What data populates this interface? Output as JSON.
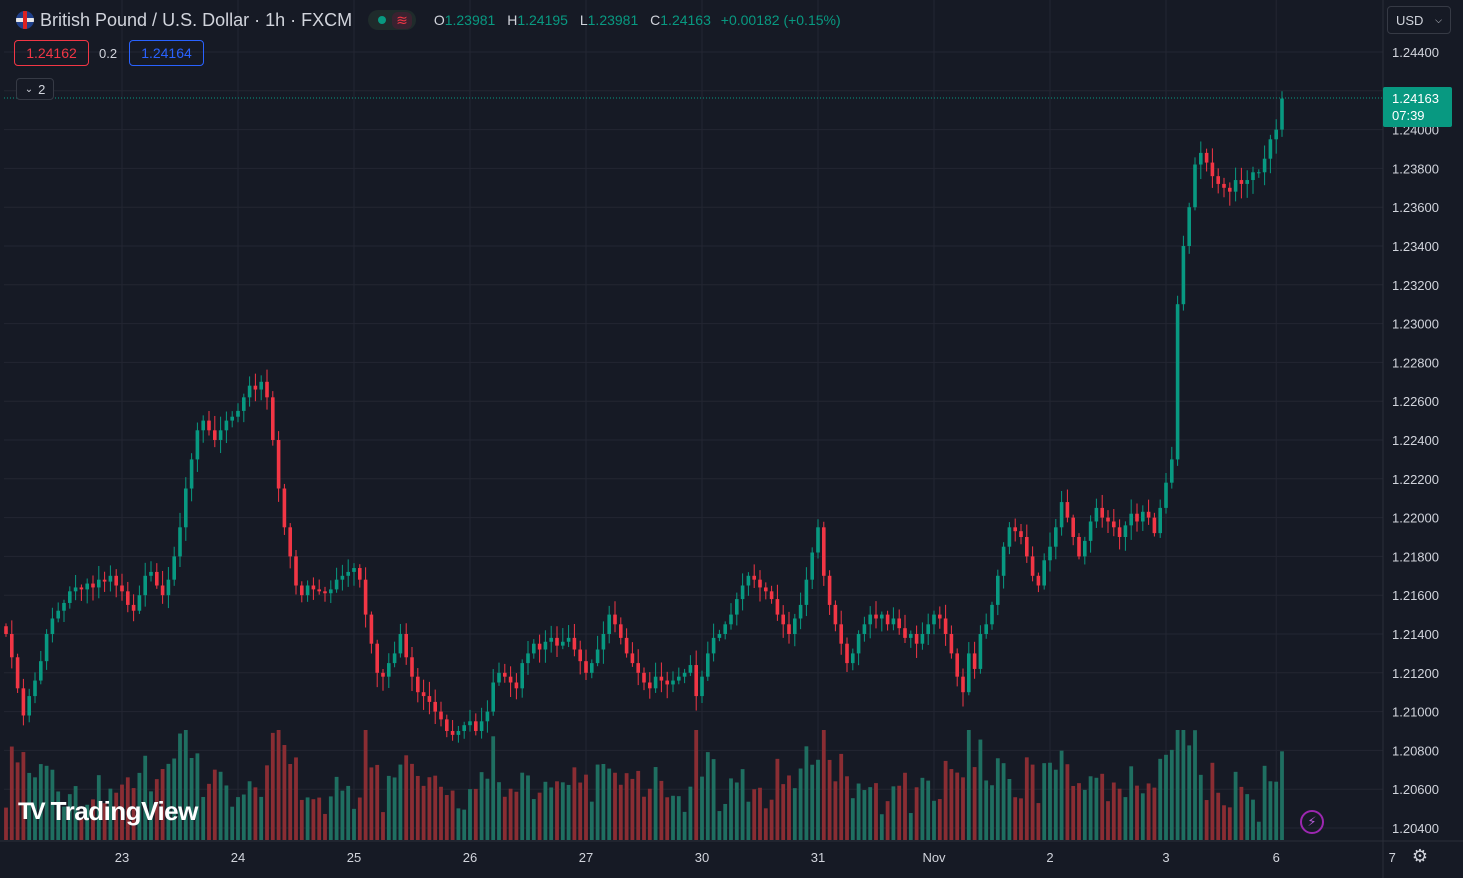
{
  "header": {
    "title": "British Pound / U.S. Dollar · 1h · FXCM",
    "ohlc": {
      "o_label": "O",
      "o": "1.23981",
      "h_label": "H",
      "h": "1.24195",
      "l_label": "L",
      "l": "1.23981",
      "c_label": "C",
      "c": "1.24163",
      "change": "+0.00182 (+0.15%)"
    },
    "sell": "1.24162",
    "spread": "0.2",
    "buy": "1.24164",
    "collapse_count": "2",
    "currency": "USD"
  },
  "last_price": {
    "price": "1.24163",
    "countdown": "07:39"
  },
  "logo": "TradingView",
  "colors": {
    "up": "#089981",
    "down": "#f23645",
    "bg": "#161a25",
    "grid": "#232632",
    "text": "#d1d4dc",
    "vol_up": "#1f6f61",
    "vol_down": "#8a2d33"
  },
  "chart_data": {
    "type": "candlestick",
    "symbol": "GBPUSD",
    "interval": "1h",
    "ylim": [
      1.203,
      1.2454
    ],
    "y_ticks": [
      "1.24400",
      "1.24200",
      "1.24000",
      "1.23800",
      "1.23600",
      "1.23400",
      "1.23200",
      "1.23000",
      "1.22800",
      "1.22600",
      "1.22400",
      "1.22200",
      "1.22000",
      "1.21800",
      "1.21600",
      "1.21400",
      "1.21200",
      "1.21000",
      "1.20800",
      "1.20600",
      "1.20400"
    ],
    "x_ticks": [
      {
        "label": "23",
        "bar": 20
      },
      {
        "label": "24",
        "bar": 40
      },
      {
        "label": "25",
        "bar": 60
      },
      {
        "label": "26",
        "bar": 80
      },
      {
        "label": "27",
        "bar": 100
      },
      {
        "label": "30",
        "bar": 120
      },
      {
        "label": "31",
        "bar": 140
      },
      {
        "label": "Nov",
        "bar": 160
      },
      {
        "label": "2",
        "bar": 180
      },
      {
        "label": "3",
        "bar": 200
      },
      {
        "label": "6",
        "bar": 219
      },
      {
        "label": "7",
        "bar": 239
      }
    ],
    "last_close": 1.24163,
    "closes": [
      1.214,
      1.2128,
      1.2112,
      1.2098,
      1.2108,
      1.2116,
      1.2126,
      1.214,
      1.2148,
      1.2152,
      1.2156,
      1.2162,
      1.2164,
      1.2163,
      1.2166,
      1.2164,
      1.2168,
      1.2167,
      1.217,
      1.2165,
      1.2162,
      1.2155,
      1.2152,
      1.216,
      1.217,
      1.2172,
      1.2165,
      1.216,
      1.2168,
      1.218,
      1.2195,
      1.2215,
      1.223,
      1.2245,
      1.225,
      1.2245,
      1.224,
      1.2245,
      1.225,
      1.2252,
      1.2255,
      1.2262,
      1.2268,
      1.2266,
      1.227,
      1.2262,
      1.224,
      1.2215,
      1.2195,
      1.218,
      1.2165,
      1.216,
      1.2165,
      1.2163,
      1.2162,
      1.2161,
      1.2163,
      1.2168,
      1.217,
      1.2172,
      1.2174,
      1.2168,
      1.215,
      1.2135,
      1.212,
      1.2118,
      1.2125,
      1.213,
      1.214,
      1.2128,
      1.2118,
      1.211,
      1.2108,
      1.2105,
      1.21,
      1.2096,
      1.209,
      1.2088,
      1.209,
      1.2093,
      1.2095,
      1.209,
      1.2095,
      1.21,
      1.2115,
      1.212,
      1.2118,
      1.2115,
      1.2112,
      1.2125,
      1.213,
      1.2135,
      1.2132,
      1.2136,
      1.2138,
      1.2134,
      1.2136,
      1.2138,
      1.2132,
      1.2126,
      1.212,
      1.2125,
      1.2132,
      1.214,
      1.215,
      1.2145,
      1.2138,
      1.213,
      1.2125,
      1.212,
      1.2115,
      1.2112,
      1.2118,
      1.2116,
      1.2114,
      1.2116,
      1.2118,
      1.212,
      1.2124,
      1.2108,
      1.2118,
      1.213,
      1.2138,
      1.214,
      1.2145,
      1.215,
      1.2158,
      1.2165,
      1.217,
      1.2168,
      1.2164,
      1.2162,
      1.2158,
      1.215,
      1.2145,
      1.214,
      1.2148,
      1.2155,
      1.2168,
      1.2182,
      1.2195,
      1.217,
      1.2155,
      1.2145,
      1.2135,
      1.2125,
      1.213,
      1.214,
      1.2145,
      1.215,
      1.2148,
      1.215,
      1.2145,
      1.2148,
      1.2143,
      1.2138,
      1.214,
      1.2135,
      1.214,
      1.2145,
      1.215,
      1.2148,
      1.214,
      1.213,
      1.2118,
      1.211,
      1.213,
      1.2122,
      1.214,
      1.2145,
      1.2155,
      1.217,
      1.2185,
      1.2195,
      1.2193,
      1.219,
      1.218,
      1.217,
      1.2165,
      1.2178,
      1.2185,
      1.2195,
      1.2208,
      1.22,
      1.219,
      1.218,
      1.2188,
      1.2198,
      1.2205,
      1.22,
      1.2198,
      1.2195,
      1.219,
      1.2196,
      1.2202,
      1.2198,
      1.2203,
      1.22,
      1.2192,
      1.2205,
      1.2218,
      1.223,
      1.231,
      1.234,
      1.236,
      1.2382,
      1.2388,
      1.2383,
      1.2376,
      1.2372,
      1.237,
      1.2368,
      1.2374,
      1.2372,
      1.2374,
      1.2378,
      1.2378,
      1.2385,
      1.2395,
      1.24,
      1.2416
    ]
  }
}
